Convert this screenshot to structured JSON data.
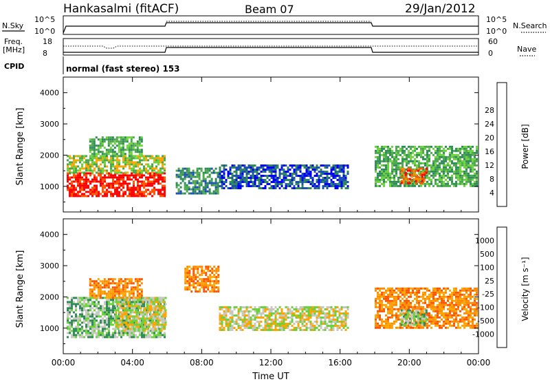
{
  "header": {
    "station": "Hankasalmi (fitACF)",
    "beam": "Beam 07",
    "date": "29/Jan/2012"
  },
  "top_panels": {
    "nsky_label": "N.Sky",
    "nsky_ticks": [
      "10^5",
      "10^0"
    ],
    "nsearch_label": "N.Search",
    "nsearch_ticks": [
      "10^5",
      "10^0"
    ],
    "freq_label_1": "Freq.",
    "freq_label_2": "[MHz]",
    "freq_ticks": [
      "18",
      "8"
    ],
    "nave_label": "Nave",
    "nave_ticks": [
      "60",
      "0"
    ],
    "cpid_label": "CPID",
    "cpid_value": "normal (fast stereo) 153"
  },
  "colors": {
    "power": [
      "#0000ff",
      "#1e50b4",
      "#2e8b57",
      "#4aa84a",
      "#6bd23c",
      "#ffa500",
      "#ff8c00",
      "#ff5500",
      "#ff0000"
    ],
    "velocity": [
      "#1c3fa8",
      "#2e6db4",
      "#2e8b57",
      "#6bd23c",
      "#c8c8c0",
      "#ffa500",
      "#ff8c00",
      "#ff5500",
      "#ff0000"
    ]
  },
  "chart_data": [
    {
      "type": "heatmap",
      "ylabel": "Slant Range [km]",
      "xlabel": "",
      "ylim": [
        180,
        4500
      ],
      "yticks": [
        "1000",
        "2000",
        "3000",
        "4000"
      ],
      "xticks": [
        "00:00",
        "04:00",
        "08:00",
        "12:00",
        "16:00",
        "20:00",
        "00:00"
      ],
      "colorbar": {
        "label": "Power [dB]",
        "ticks": [
          "4",
          "8",
          "12",
          "16",
          "20",
          "24",
          "28"
        ]
      },
      "regions": [
        {
          "t": [
            0.2,
            5.9
          ],
          "r": [
            700,
            1450
          ],
          "level": 8
        },
        {
          "t": [
            0.2,
            5.9
          ],
          "r": [
            1450,
            2000
          ],
          "level": 4
        },
        {
          "t": [
            1.5,
            4.5
          ],
          "r": [
            2000,
            2600
          ],
          "level": 3
        },
        {
          "t": [
            6.5,
            9.0
          ],
          "r": [
            800,
            1600
          ],
          "level": 2
        },
        {
          "t": [
            9.0,
            16.5
          ],
          "r": [
            950,
            1700
          ],
          "level": 1
        },
        {
          "t": [
            18.0,
            23.9
          ],
          "r": [
            1000,
            2300
          ],
          "level": 3
        },
        {
          "t": [
            19.5,
            21.0
          ],
          "r": [
            1100,
            1600
          ],
          "level": 7
        }
      ]
    },
    {
      "type": "heatmap",
      "ylabel": "Slant Range [km]",
      "xlabel": "Time UT",
      "ylim": [
        180,
        4500
      ],
      "yticks": [
        "1000",
        "2000",
        "3000",
        "4000"
      ],
      "xticks": [
        "00:00",
        "04:00",
        "08:00",
        "12:00",
        "16:00",
        "20:00",
        "00:00"
      ],
      "colorbar": {
        "label": "Velocity [m s⁻¹]",
        "ticks": [
          "1000",
          "500",
          "100",
          "25",
          "-25",
          "-100",
          "-500",
          "-1000"
        ]
      },
      "regions": [
        {
          "t": [
            0.2,
            5.9
          ],
          "r": [
            700,
            2000
          ],
          "level": 3
        },
        {
          "t": [
            3.0,
            5.9
          ],
          "r": [
            900,
            2000
          ],
          "level": 4
        },
        {
          "t": [
            1.5,
            4.5
          ],
          "r": [
            2000,
            2600
          ],
          "level": 6
        },
        {
          "t": [
            7.0,
            9.0
          ],
          "r": [
            2200,
            3000
          ],
          "level": 6
        },
        {
          "t": [
            9.0,
            16.5
          ],
          "r": [
            950,
            1700
          ],
          "level": 4
        },
        {
          "t": [
            18.0,
            23.9
          ],
          "r": [
            1000,
            2300
          ],
          "level": 6
        },
        {
          "t": [
            19.5,
            21.0
          ],
          "r": [
            1100,
            1600
          ],
          "level": 3
        }
      ]
    }
  ]
}
